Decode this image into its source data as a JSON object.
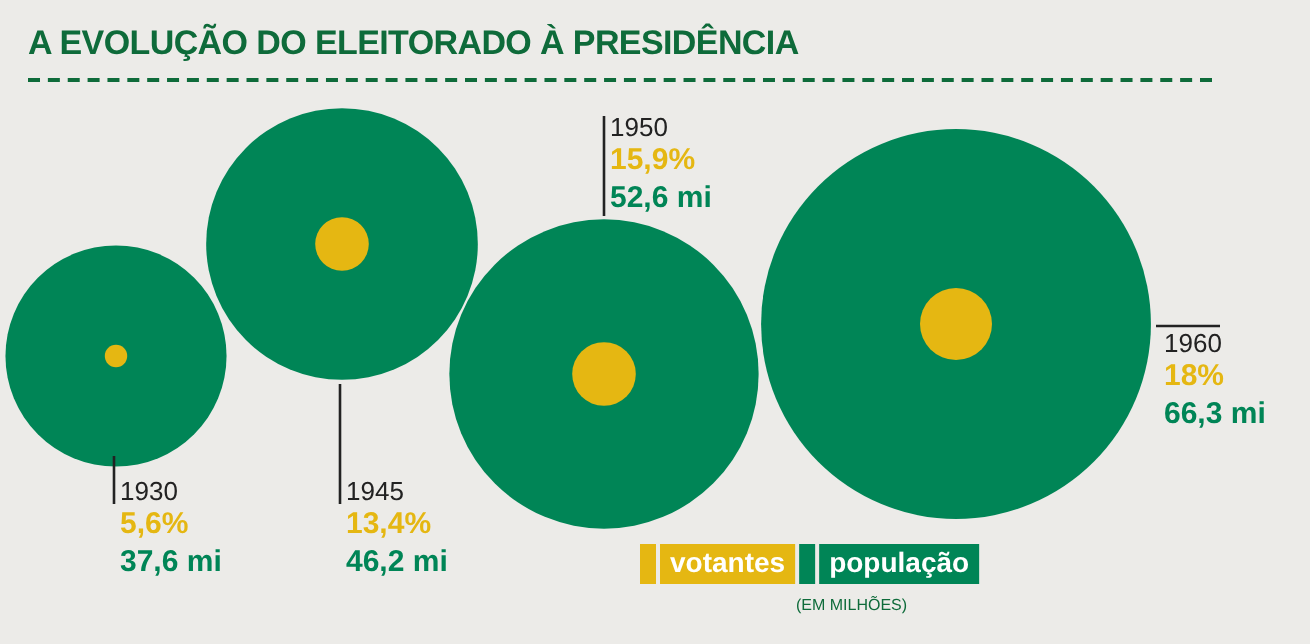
{
  "chart_data": {
    "type": "other",
    "title": "A EVOLUÇÃO DO ELEITORADO À PRESIDÊNCIA",
    "categories": [
      "1930",
      "1945",
      "1950",
      "1960"
    ],
    "series": [
      {
        "name": "votantes",
        "color": "#e5b712",
        "values": [
          5.6,
          13.4,
          15.9,
          18
        ],
        "value_labels": [
          "5,6%",
          "13,4%",
          "15,9%",
          "18%"
        ]
      },
      {
        "name": "população",
        "color": "#008556",
        "values": [
          37.6,
          46.2,
          52.6,
          66.3
        ],
        "value_labels": [
          "37,6 mi",
          "46,2 mi",
          "52,6 mi",
          "66,3 mi"
        ]
      }
    ],
    "legend": "bottom",
    "annotations": [
      "(EM MILHÕES)"
    ]
  }
}
